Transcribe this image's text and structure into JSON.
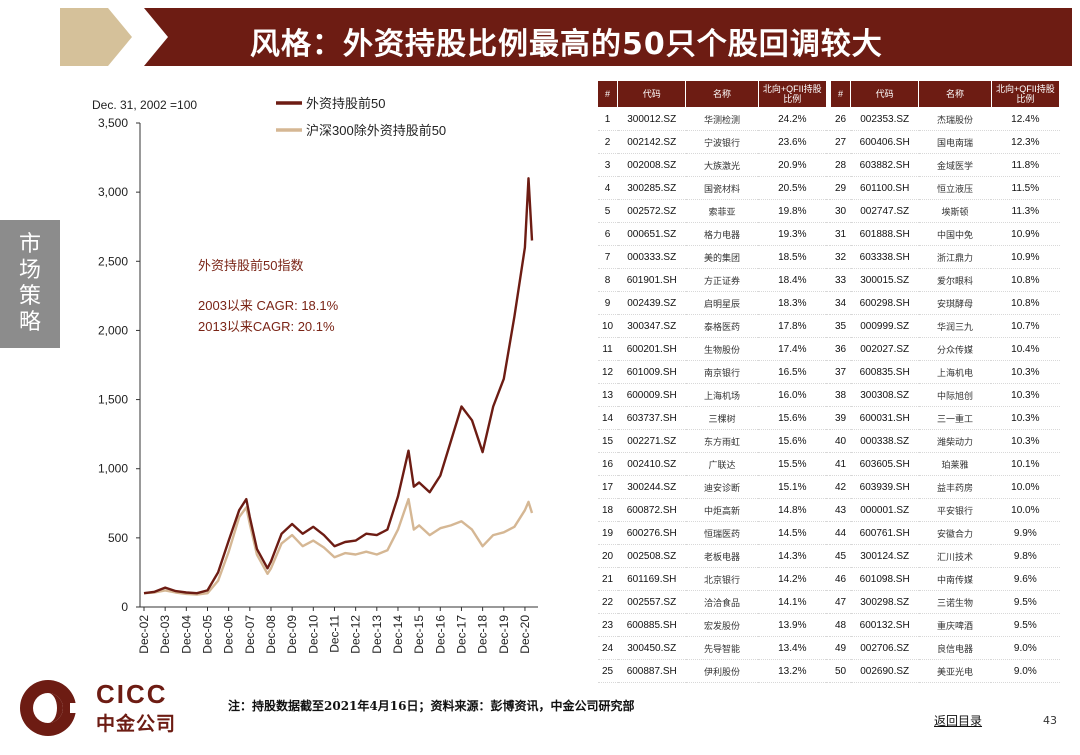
{
  "title": "风格：外资持股比例最高的50只个股回调较大",
  "side_tab": "市场策略",
  "chart_data": {
    "type": "line",
    "base_note": "Dec. 31, 2002 =100",
    "series": [
      {
        "name": "外资持股前50",
        "color": "#6d1c13",
        "x": [
          "Dec-02",
          "Jun-03",
          "Dec-03",
          "Jun-04",
          "Dec-04",
          "Jun-05",
          "Dec-05",
          "Jun-06",
          "Dec-06",
          "Jun-07",
          "Oct-07",
          "Dec-07",
          "Apr-08",
          "Oct-08",
          "Dec-08",
          "Jun-09",
          "Dec-09",
          "Jun-10",
          "Dec-10",
          "Jun-11",
          "Dec-11",
          "Jun-12",
          "Dec-12",
          "Jun-13",
          "Dec-13",
          "Jun-14",
          "Dec-14",
          "Jun-15",
          "Sep-15",
          "Dec-15",
          "Jun-16",
          "Dec-16",
          "Jun-17",
          "Dec-17",
          "Jun-18",
          "Dec-18",
          "Jun-19",
          "Dec-19",
          "Jun-20",
          "Dec-20",
          "Feb-21",
          "Apr-21"
        ],
        "values": [
          100,
          110,
          140,
          115,
          105,
          100,
          120,
          250,
          480,
          700,
          780,
          650,
          420,
          280,
          330,
          530,
          600,
          530,
          580,
          520,
          440,
          470,
          480,
          530,
          520,
          560,
          800,
          1130,
          870,
          900,
          830,
          950,
          1200,
          1450,
          1350,
          1120,
          1450,
          1650,
          2100,
          2600,
          3100,
          2650
        ]
      },
      {
        "name": "沪深300除外资持股前50",
        "color": "#d5b794",
        "x": [
          "Dec-02",
          "Jun-03",
          "Dec-03",
          "Jun-04",
          "Dec-04",
          "Jun-05",
          "Dec-05",
          "Jun-06",
          "Dec-06",
          "Jun-07",
          "Oct-07",
          "Dec-07",
          "Apr-08",
          "Oct-08",
          "Dec-08",
          "Jun-09",
          "Dec-09",
          "Jun-10",
          "Dec-10",
          "Jun-11",
          "Dec-11",
          "Jun-12",
          "Dec-12",
          "Jun-13",
          "Dec-13",
          "Jun-14",
          "Dec-14",
          "Jun-15",
          "Sep-15",
          "Dec-15",
          "Jun-16",
          "Dec-16",
          "Jun-17",
          "Dec-17",
          "Jun-18",
          "Dec-18",
          "Jun-19",
          "Dec-19",
          "Jun-20",
          "Dec-20",
          "Feb-21",
          "Apr-21"
        ],
        "values": [
          100,
          105,
          120,
          105,
          95,
          90,
          100,
          190,
          400,
          650,
          720,
          600,
          380,
          240,
          280,
          460,
          520,
          440,
          480,
          430,
          360,
          390,
          380,
          400,
          380,
          410,
          560,
          780,
          560,
          590,
          520,
          570,
          590,
          620,
          560,
          440,
          520,
          540,
          580,
          700,
          760,
          680
        ]
      }
    ],
    "x_ticks": [
      "Dec-02",
      "Dec-03",
      "Dec-04",
      "Dec-05",
      "Dec-06",
      "Dec-07",
      "Dec-08",
      "Dec-09",
      "Dec-10",
      "Dec-11",
      "Dec-12",
      "Dec-13",
      "Dec-14",
      "Dec-15",
      "Dec-16",
      "Dec-17",
      "Dec-18",
      "Dec-19",
      "Dec-20"
    ],
    "y_ticks": [
      "0",
      "500",
      "1,000",
      "1,500",
      "2,000",
      "2,500",
      "3,000",
      "3,500"
    ],
    "ylim": [
      0,
      3500
    ],
    "annotation_title": "外资持股前50指数",
    "annotation_cagr1": "2003以来 CAGR: 18.1%",
    "annotation_cagr2": "2013以来CAGR:  20.1%"
  },
  "table": {
    "headers": [
      "#",
      "代码",
      "名称",
      "北向+QFII持股比例"
    ],
    "rows": [
      [
        "1",
        "300012.SZ",
        "华测检测",
        "24.2%",
        "26",
        "002353.SZ",
        "杰瑞股份",
        "12.4%"
      ],
      [
        "2",
        "002142.SZ",
        "宁波银行",
        "23.6%",
        "27",
        "600406.SH",
        "国电南瑞",
        "12.3%"
      ],
      [
        "3",
        "002008.SZ",
        "大族激光",
        "20.9%",
        "28",
        "603882.SH",
        "金域医学",
        "11.8%"
      ],
      [
        "4",
        "300285.SZ",
        "国瓷材料",
        "20.5%",
        "29",
        "601100.SH",
        "恒立液压",
        "11.5%"
      ],
      [
        "5",
        "002572.SZ",
        "索菲亚",
        "19.8%",
        "30",
        "002747.SZ",
        "埃斯顿",
        "11.3%"
      ],
      [
        "6",
        "000651.SZ",
        "格力电器",
        "19.3%",
        "31",
        "601888.SH",
        "中国中免",
        "10.9%"
      ],
      [
        "7",
        "000333.SZ",
        "美的集团",
        "18.5%",
        "32",
        "603338.SH",
        "浙江鼎力",
        "10.9%"
      ],
      [
        "8",
        "601901.SH",
        "方正证券",
        "18.4%",
        "33",
        "300015.SZ",
        "爱尔眼科",
        "10.8%"
      ],
      [
        "9",
        "002439.SZ",
        "启明星辰",
        "18.3%",
        "34",
        "600298.SH",
        "安琪酵母",
        "10.8%"
      ],
      [
        "10",
        "300347.SZ",
        "泰格医药",
        "17.8%",
        "35",
        "000999.SZ",
        "华润三九",
        "10.7%"
      ],
      [
        "11",
        "600201.SH",
        "生物股份",
        "17.4%",
        "36",
        "002027.SZ",
        "分众传媒",
        "10.4%"
      ],
      [
        "12",
        "601009.SH",
        "南京银行",
        "16.5%",
        "37",
        "600835.SH",
        "上海机电",
        "10.3%"
      ],
      [
        "13",
        "600009.SH",
        "上海机场",
        "16.0%",
        "38",
        "300308.SZ",
        "中际旭创",
        "10.3%"
      ],
      [
        "14",
        "603737.SH",
        "三棵树",
        "15.6%",
        "39",
        "600031.SH",
        "三一重工",
        "10.3%"
      ],
      [
        "15",
        "002271.SZ",
        "东方雨虹",
        "15.6%",
        "40",
        "000338.SZ",
        "潍柴动力",
        "10.3%"
      ],
      [
        "16",
        "002410.SZ",
        "广联达",
        "15.5%",
        "41",
        "603605.SH",
        "珀莱雅",
        "10.1%"
      ],
      [
        "17",
        "300244.SZ",
        "迪安诊断",
        "15.1%",
        "42",
        "603939.SH",
        "益丰药房",
        "10.0%"
      ],
      [
        "18",
        "600872.SH",
        "中炬高新",
        "14.8%",
        "43",
        "000001.SZ",
        "平安银行",
        "10.0%"
      ],
      [
        "19",
        "600276.SH",
        "恒瑞医药",
        "14.5%",
        "44",
        "600761.SH",
        "安徽合力",
        "9.9%"
      ],
      [
        "20",
        "002508.SZ",
        "老板电器",
        "14.3%",
        "45",
        "300124.SZ",
        "汇川技术",
        "9.8%"
      ],
      [
        "21",
        "601169.SH",
        "北京银行",
        "14.2%",
        "46",
        "601098.SH",
        "中南传媒",
        "9.6%"
      ],
      [
        "22",
        "002557.SZ",
        "洽洽食品",
        "14.1%",
        "47",
        "300298.SZ",
        "三诺生物",
        "9.5%"
      ],
      [
        "23",
        "600885.SH",
        "宏发股份",
        "13.9%",
        "48",
        "600132.SH",
        "重庆啤酒",
        "9.5%"
      ],
      [
        "24",
        "300450.SZ",
        "先导智能",
        "13.4%",
        "49",
        "002706.SZ",
        "良信电器",
        "9.0%"
      ],
      [
        "25",
        "600887.SH",
        "伊利股份",
        "13.2%",
        "50",
        "002690.SZ",
        "美亚光电",
        "9.0%"
      ]
    ]
  },
  "logo": {
    "en": "CICC",
    "cn": "中金公司"
  },
  "footnote": "注：持股数据截至2021年4月16日；资料来源：彭博资讯，中金公司研究部",
  "back_link": "返回目录",
  "page_number": "43",
  "colors": {
    "brand": "#6d1c13",
    "gold": "#d5b794",
    "gray_tab": "#8c8c8c"
  }
}
